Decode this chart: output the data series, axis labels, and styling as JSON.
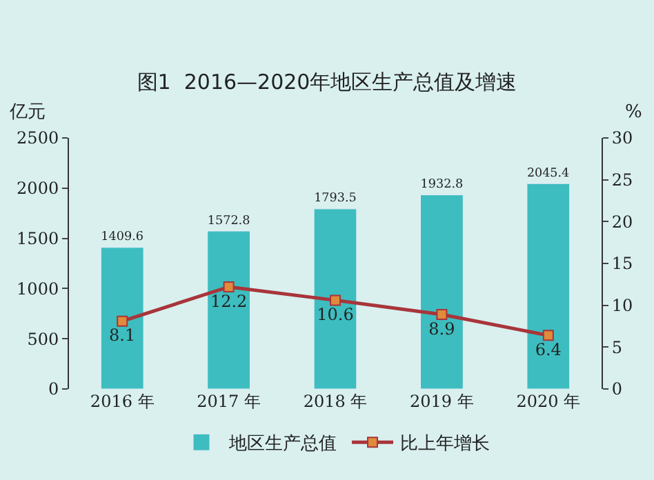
{
  "chart_data": {
    "type": "bar",
    "title": "图1  2016—2020年地区生产总值及增速",
    "ylabel": "亿元",
    "y2label": "%",
    "categories": [
      "2016 年",
      "2017 年",
      "2018 年",
      "2019 年",
      "2020 年"
    ],
    "series": [
      {
        "name": "地区生产总值",
        "color": "#3dbdbf",
        "values": [
          1409.6,
          1572.8,
          1793.5,
          1932.8,
          2045.4
        ]
      },
      {
        "name": "比上年增长",
        "type": "line",
        "axis": "y2",
        "color": "#a8353a",
        "marker": "square",
        "values": [
          8.1,
          12.2,
          10.6,
          8.9,
          6.4
        ]
      }
    ],
    "data_labels": true,
    "ylim": [
      0,
      2500
    ],
    "yticks": [
      0,
      500,
      1000,
      1500,
      2000,
      2500
    ],
    "y2lim": [
      0,
      30
    ],
    "y2ticks": [
      0,
      5,
      10,
      15,
      20,
      25,
      30
    ],
    "grid": false,
    "legend": "bottom"
  }
}
